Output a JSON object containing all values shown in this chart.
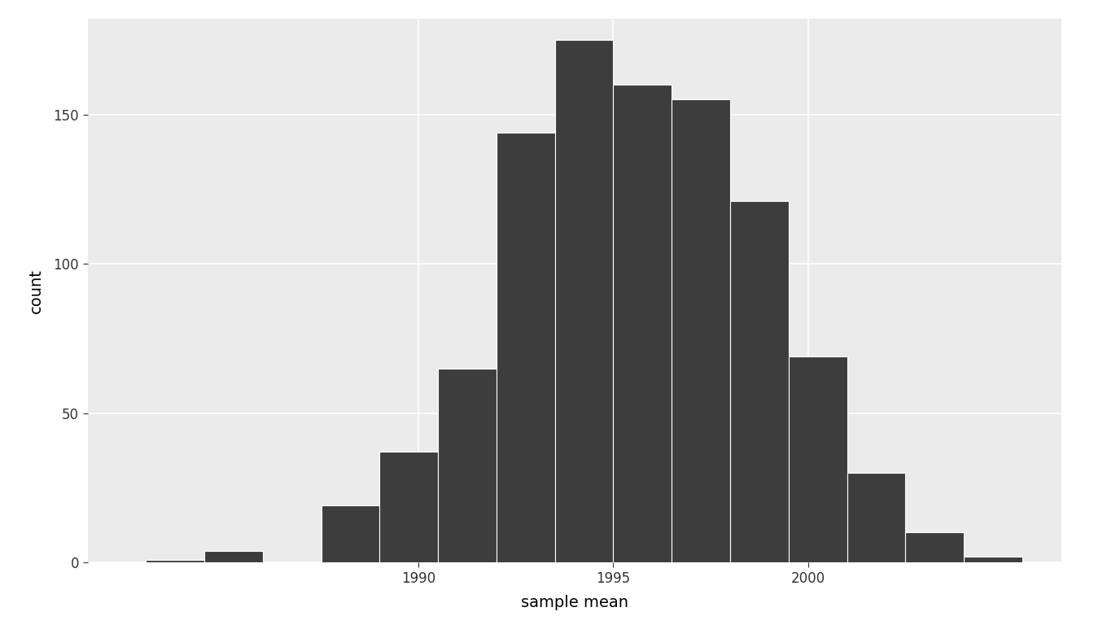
{
  "title": "",
  "xlabel": "sample mean",
  "ylabel": "count",
  "bar_color": "#3d3d3d",
  "bar_edge_color": "white",
  "figure_background": "#ffffff",
  "panel_background": "#ebebeb",
  "grid_color": "#ffffff",
  "bin_lefts": [
    1983.0,
    1984.5,
    1986.0,
    1987.5,
    1989.0,
    1990.5,
    1992.0,
    1993.5,
    1995.0,
    1996.5,
    1998.0,
    1999.5,
    2001.0,
    2002.5,
    2004.0
  ],
  "counts": [
    1,
    4,
    0,
    19,
    37,
    65,
    144,
    175,
    160,
    155,
    121,
    69,
    30,
    10,
    2
  ],
  "bin_width": 1.5,
  "xlim": [
    1981.5,
    2006.5
  ],
  "ylim": [
    0,
    182
  ],
  "xticks": [
    1990,
    1995,
    2000
  ],
  "yticks": [
    0,
    50,
    100,
    150
  ],
  "xlabel_fontsize": 14,
  "ylabel_fontsize": 14,
  "tick_fontsize": 12
}
